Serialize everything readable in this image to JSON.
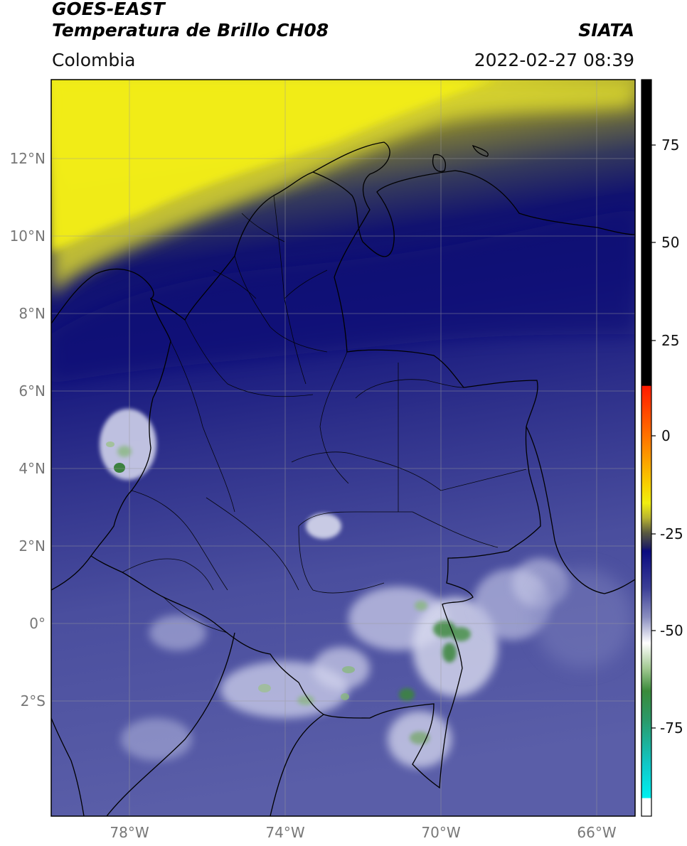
{
  "header": {
    "satellite": "GOES-EAST",
    "product": "Temperatura de Brillo CH08",
    "organization": "SIATA",
    "region": "Colombia",
    "timestamp": "2022-02-27 08:39"
  },
  "map": {
    "lon_range": [
      -80,
      -65
    ],
    "lat_range": [
      -5,
      14
    ],
    "lat_ticks": [
      "12°N",
      "10°N",
      "8°N",
      "6°N",
      "4°N",
      "2°N",
      "0°",
      "2°S"
    ],
    "lon_ticks": [
      "78°W",
      "74°W",
      "70°W",
      "66°W"
    ],
    "grid": true
  },
  "colorbar": {
    "ticks": [
      "75",
      "50",
      "25",
      "0",
      "-25",
      "-50",
      "-75"
    ],
    "colors": {
      "hot": "#000000",
      "warm": "#ff2a00",
      "mid": "#f5f000",
      "dark_blue": "#0a0a80",
      "pale": "#ffffff",
      "green": "#2e8a2e",
      "cyan": "#00e0e0"
    }
  }
}
